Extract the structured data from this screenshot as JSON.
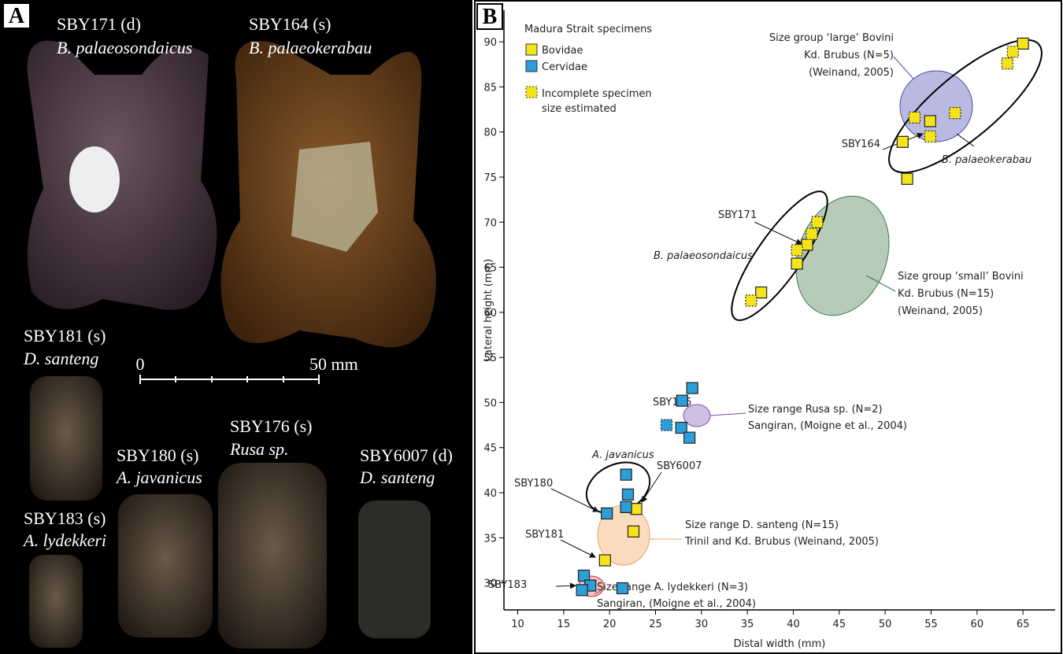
{
  "panel_a": {
    "label": "A",
    "specimens": [
      {
        "id": "SBY171 (d)",
        "taxon": "B. palaeosondaicus"
      },
      {
        "id": "SBY164 (s)",
        "taxon": "B. palaeokerabau"
      },
      {
        "id": "SBY181 (s)",
        "taxon": "D. santeng"
      },
      {
        "id": "SBY176 (s)",
        "taxon": "Rusa sp."
      },
      {
        "id": "SBY180 (s)",
        "taxon": "A. javanicus"
      },
      {
        "id": "SBY6007 (d)",
        "taxon": "D. santeng"
      },
      {
        "id": "SBY183 (s)",
        "taxon": "A. lydekkeri"
      }
    ],
    "scale_start": "0",
    "scale_end": "50 mm"
  },
  "chart_data": {
    "type": "scatter",
    "panel_label": "B",
    "xlabel": "Distal width (mm)",
    "ylabel": "Lateral height (mm)",
    "xlim": [
      8.5,
      68.5
    ],
    "ylim": [
      27,
      93.5
    ],
    "xticks": [
      10,
      15,
      20,
      25,
      30,
      35,
      40,
      45,
      50,
      55,
      60,
      65
    ],
    "yticks": [
      30,
      35,
      40,
      45,
      50,
      55,
      60,
      65,
      70,
      75,
      80,
      85,
      90
    ],
    "legend_title": "Madura Strait specimens",
    "legend_note": "Incomplete specimen size estimated",
    "series": [
      {
        "name": "Bovidae",
        "color": "#f5e41b",
        "x": [
          65.0,
          54.9,
          51.9,
          52.4,
          41.5,
          40.4,
          36.5,
          22.9,
          22.6,
          19.5,
          63.9,
          63.3,
          53.2,
          57.6,
          54.9,
          40.4,
          42.0,
          42.6,
          35.4
        ],
        "y": [
          89.8,
          81.2,
          78.9,
          74.8,
          67.5,
          65.4,
          62.2,
          38.2,
          35.7,
          32.5,
          88.9,
          87.6,
          81.6,
          82.1,
          79.5,
          66.9,
          68.7,
          70.0,
          61.3
        ],
        "estimated": [
          false,
          false,
          false,
          false,
          false,
          false,
          false,
          false,
          false,
          false,
          true,
          true,
          true,
          true,
          true,
          true,
          true,
          true,
          true
        ]
      },
      {
        "name": "Cervidae",
        "color": "#2b9fd9",
        "x": [
          29.0,
          27.9,
          27.8,
          28.7,
          21.8,
          22.0,
          21.8,
          19.7,
          21.4,
          17.2,
          17.9,
          17.0,
          26.2
        ],
        "y": [
          51.6,
          50.2,
          47.2,
          46.1,
          42.0,
          39.8,
          38.4,
          37.7,
          29.4,
          30.8,
          29.7,
          29.2,
          47.5
        ],
        "estimated": [
          false,
          false,
          false,
          false,
          false,
          false,
          false,
          false,
          false,
          false,
          false,
          false,
          true
        ]
      }
    ],
    "annotations": {
      "large": [
        "Size group ‘large’ Bovini",
        "Kd. Brubus (N=5)",
        "(Weinand, 2005)"
      ],
      "small": [
        "Size group ‘small’ Bovini",
        "Kd. Brubus (N=15)",
        "(Weinand, 2005)"
      ],
      "rusa": [
        "Size range Rusa sp. (N=2)",
        "Sangiran, (Moigne et al., 2004)"
      ],
      "santeng": [
        "Size range D. santeng (N=15)",
        "Trinil and Kd. Brubus (Weinand, 2005)"
      ],
      "lydekkeri": [
        "Size range A. lydekkeri (N=3)",
        "Sangiran, (Moigne et al., 2004)"
      ],
      "labels": [
        "SBY164",
        "SBY171",
        "B. palaeokerabau",
        "B. palaeosondaicus",
        "SBY176",
        "A. javanicus",
        "SBY6007",
        "SBY180",
        "SBY181",
        "SBY183"
      ]
    }
  }
}
